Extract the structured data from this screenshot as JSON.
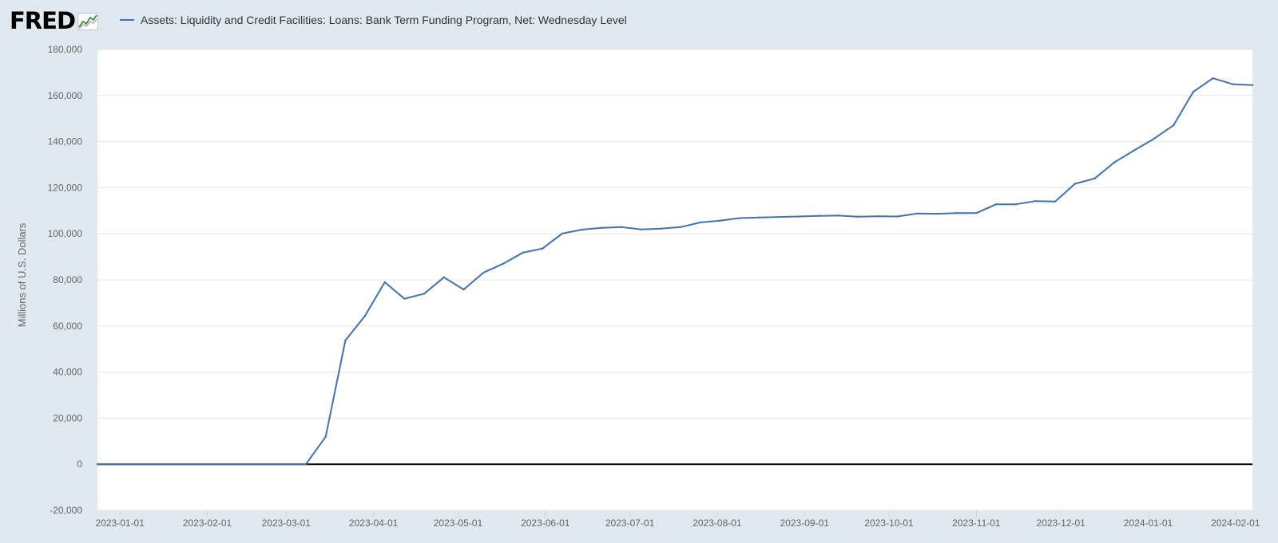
{
  "logo": {
    "text": "FRED",
    "mark": "®"
  },
  "legend": {
    "label": "Assets: Liquidity and Credit Facilities: Loans: Bank Term Funding Program, Net: Wednesday Level"
  },
  "colors": {
    "background": "#e1e9f0",
    "plot": "#ffffff",
    "series": "#4572a7",
    "grid": "#e6e6e6",
    "zero_line": "#000000"
  },
  "chart_data": {
    "type": "line",
    "title": "",
    "xlabel": "",
    "ylabel": "Millions of U.S. Dollars",
    "ylim": [
      -20000,
      180000
    ],
    "xlim": [
      "2022-12-24",
      "2024-02-07"
    ],
    "grid": true,
    "legend_position": "top-left",
    "y_ticks": [
      -20000,
      0,
      20000,
      40000,
      60000,
      80000,
      100000,
      120000,
      140000,
      160000,
      180000
    ],
    "y_tick_labels": [
      "-20,000",
      "0",
      "20,000",
      "40,000",
      "60,000",
      "80,000",
      "100,000",
      "120,000",
      "140,000",
      "160,000",
      "180,000"
    ],
    "x_ticks": [
      "2023-01-01",
      "2023-02-01",
      "2023-03-01",
      "2023-04-01",
      "2023-05-01",
      "2023-06-01",
      "2023-07-01",
      "2023-08-01",
      "2023-09-01",
      "2023-10-01",
      "2023-11-01",
      "2023-12-01",
      "2024-01-01",
      "2024-02-01"
    ],
    "series": [
      {
        "name": "Assets: Liquidity and Credit Facilities: Loans: Bank Term Funding Program, Net: Wednesday Level",
        "x": [
          "2022-12-24",
          "2023-03-08",
          "2023-03-15",
          "2023-03-22",
          "2023-03-29",
          "2023-04-05",
          "2023-04-12",
          "2023-04-19",
          "2023-04-26",
          "2023-05-03",
          "2023-05-10",
          "2023-05-17",
          "2023-05-24",
          "2023-05-31",
          "2023-06-07",
          "2023-06-14",
          "2023-06-21",
          "2023-06-28",
          "2023-07-05",
          "2023-07-12",
          "2023-07-19",
          "2023-07-26",
          "2023-08-02",
          "2023-08-09",
          "2023-08-16",
          "2023-08-23",
          "2023-08-30",
          "2023-09-06",
          "2023-09-13",
          "2023-09-20",
          "2023-09-27",
          "2023-10-04",
          "2023-10-11",
          "2023-10-18",
          "2023-10-25",
          "2023-11-01",
          "2023-11-08",
          "2023-11-15",
          "2023-11-22",
          "2023-11-29",
          "2023-12-06",
          "2023-12-13",
          "2023-12-20",
          "2023-12-27",
          "2024-01-03",
          "2024-01-10",
          "2024-01-17",
          "2024-01-24",
          "2024-01-31",
          "2024-02-07"
        ],
        "y": [
          0,
          0,
          11900,
          53700,
          64400,
          79000,
          71800,
          74000,
          81100,
          75800,
          83100,
          87000,
          91800,
          93600,
          100100,
          101800,
          102600,
          102900,
          101900,
          102200,
          102900,
          104900,
          105700,
          106800,
          107100,
          107300,
          107500,
          107800,
          107900,
          107400,
          107600,
          107500,
          108800,
          108700,
          109000,
          109000,
          112800,
          112800,
          114200,
          114000,
          121700,
          124000,
          131000,
          136200,
          141200,
          147100,
          161600,
          167500,
          164900,
          164500
        ]
      }
    ]
  }
}
